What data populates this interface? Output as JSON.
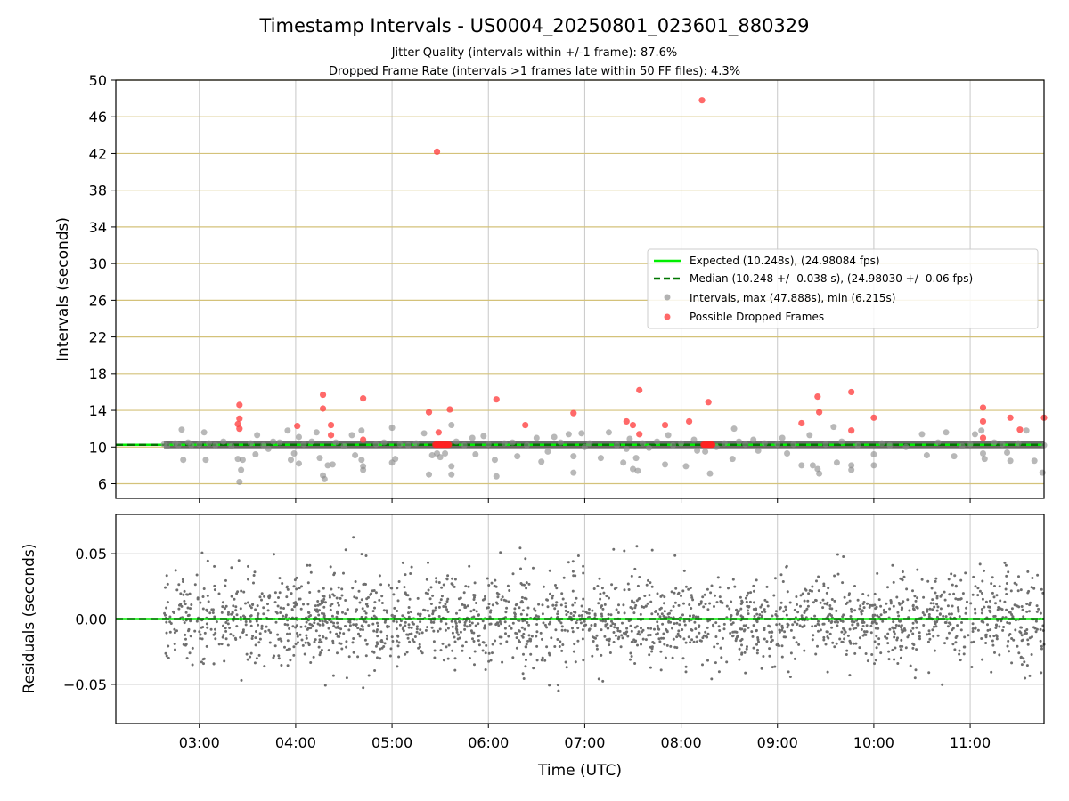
{
  "figure": {
    "title": "Timestamp Intervals - US0004_20250801_023601_880329",
    "subtitle_line1": "Jitter Quality (intervals within +/-1 frame): 87.6%",
    "subtitle_line2": "Dropped Frame Rate (intervals >1 frames late within 50 FF files): 4.3%"
  },
  "chart_data": [
    {
      "type": "scatter",
      "ylabel": "Intervals (seconds)",
      "xlim": [
        "02:08",
        "11:46"
      ],
      "ylim": [
        4.4,
        50
      ],
      "yticks": [
        6,
        10,
        14,
        18,
        22,
        26,
        30,
        34,
        38,
        42,
        46,
        50
      ],
      "ytick_labels": [
        "6",
        "10",
        "14",
        "18",
        "22",
        "26",
        "30",
        "34",
        "38",
        "42",
        "46",
        "50"
      ],
      "grid": "on",
      "grid_color_horizontal": "#d4c27a",
      "grid_color_vertical": "#c8c8c8",
      "legend_position": "right",
      "legend": [
        {
          "label": "Expected (10.248s), (24.98084 fps)",
          "kind": "line",
          "color": "#00ee00"
        },
        {
          "label": "Median (10.248 +/- 0.038 s), (24.98030 +/- 0.06 fps)",
          "kind": "dashed",
          "color": "#007700"
        },
        {
          "label": "Intervals, max (47.888s), min (6.215s)",
          "kind": "marker",
          "color": "#888888"
        },
        {
          "label": "Possible Dropped Frames",
          "kind": "marker",
          "color": "#ff4444"
        }
      ],
      "reference_lines": {
        "expected": 10.248,
        "median": 10.248
      },
      "series": [
        {
          "name": "Possible Dropped Frames",
          "color": "#ff4444",
          "points": [
            [
              "03:25",
              14.6
            ],
            [
              "03:25",
              13.1
            ],
            [
              "03:24",
              12.5
            ],
            [
              "03:25",
              12.0
            ],
            [
              "04:01",
              12.3
            ],
            [
              "04:17",
              15.7
            ],
            [
              "04:17",
              14.2
            ],
            [
              "04:22",
              12.4
            ],
            [
              "04:22",
              11.3
            ],
            [
              "04:42",
              15.3
            ],
            [
              "04:42",
              10.8
            ],
            [
              "05:23",
              13.8
            ],
            [
              "05:28",
              42.2
            ],
            [
              "05:29",
              11.6
            ],
            [
              "05:36",
              14.1
            ],
            [
              "06:05",
              15.2
            ],
            [
              "06:23",
              12.4
            ],
            [
              "06:53",
              13.7
            ],
            [
              "07:26",
              12.8
            ],
            [
              "07:30",
              12.4
            ],
            [
              "07:34",
              16.2
            ],
            [
              "07:34",
              11.4
            ],
            [
              "07:50",
              12.4
            ],
            [
              "08:05",
              12.8
            ],
            [
              "08:13",
              47.8
            ],
            [
              "08:17",
              14.9
            ],
            [
              "09:15",
              12.6
            ],
            [
              "09:25",
              15.5
            ],
            [
              "09:26",
              13.8
            ],
            [
              "09:46",
              16.0
            ],
            [
              "09:46",
              11.8
            ],
            [
              "10:00",
              13.2
            ],
            [
              "11:08",
              14.3
            ],
            [
              "11:08",
              12.8
            ],
            [
              "11:08",
              11.0
            ],
            [
              "11:25",
              13.2
            ],
            [
              "11:31",
              11.9
            ],
            [
              "11:46",
              13.2
            ]
          ]
        },
        {
          "name": "Intervals",
          "color": "#888888",
          "points": [
            [
              "02:38",
              10.3
            ],
            [
              "02:40",
              10.1
            ],
            [
              "02:45",
              10.4
            ],
            [
              "02:47",
              10.2
            ],
            [
              "02:49",
              11.9
            ],
            [
              "02:50",
              8.6
            ],
            [
              "02:53",
              10.5
            ],
            [
              "02:55",
              10.2
            ],
            [
              "03:00",
              10.3
            ],
            [
              "03:03",
              11.6
            ],
            [
              "03:04",
              8.6
            ],
            [
              "03:06",
              10.4
            ],
            [
              "03:10",
              10.2
            ],
            [
              "03:15",
              10.6
            ],
            [
              "03:20",
              10.1
            ],
            [
              "03:24",
              8.7
            ],
            [
              "03:25",
              6.2
            ],
            [
              "03:26",
              7.5
            ],
            [
              "03:27",
              8.6
            ],
            [
              "03:32",
              10.4
            ],
            [
              "03:35",
              9.2
            ],
            [
              "03:36",
              11.3
            ],
            [
              "03:40",
              10.2
            ],
            [
              "03:43",
              9.8
            ],
            [
              "03:46",
              10.6
            ],
            [
              "03:50",
              10.5
            ],
            [
              "03:55",
              11.8
            ],
            [
              "03:57",
              8.6
            ],
            [
              "03:59",
              9.3
            ],
            [
              "04:02",
              11.1
            ],
            [
              "04:02",
              8.2
            ],
            [
              "04:05",
              10.3
            ],
            [
              "04:10",
              10.6
            ],
            [
              "04:13",
              11.6
            ],
            [
              "04:15",
              8.8
            ],
            [
              "04:17",
              6.9
            ],
            [
              "04:18",
              6.5
            ],
            [
              "04:20",
              8.0
            ],
            [
              "04:23",
              8.1
            ],
            [
              "04:25",
              10.5
            ],
            [
              "04:30",
              10.1
            ],
            [
              "04:35",
              11.3
            ],
            [
              "04:37",
              9.1
            ],
            [
              "04:41",
              11.8
            ],
            [
              "04:41",
              8.6
            ],
            [
              "04:42",
              7.9
            ],
            [
              "04:42",
              7.5
            ],
            [
              "04:50",
              10.3
            ],
            [
              "04:55",
              10.5
            ],
            [
              "05:00",
              12.1
            ],
            [
              "05:00",
              8.3
            ],
            [
              "05:02",
              8.7
            ],
            [
              "05:05",
              10.3
            ],
            [
              "05:10",
              10.2
            ],
            [
              "05:15",
              10.4
            ],
            [
              "05:20",
              11.5
            ],
            [
              "05:23",
              7.0
            ],
            [
              "05:25",
              9.1
            ],
            [
              "05:28",
              9.3
            ],
            [
              "05:30",
              8.9
            ],
            [
              "05:33",
              9.3
            ],
            [
              "05:37",
              12.4
            ],
            [
              "05:37",
              7.9
            ],
            [
              "05:37",
              7.0
            ],
            [
              "05:40",
              10.6
            ],
            [
              "05:45",
              10.2
            ],
            [
              "05:50",
              11.0
            ],
            [
              "05:52",
              9.2
            ],
            [
              "05:57",
              11.2
            ],
            [
              "06:00",
              10.3
            ],
            [
              "06:04",
              8.6
            ],
            [
              "06:05",
              6.8
            ],
            [
              "06:10",
              10.4
            ],
            [
              "06:15",
              10.5
            ],
            [
              "06:18",
              9.0
            ],
            [
              "06:24",
              10.2
            ],
            [
              "06:30",
              11.0
            ],
            [
              "06:33",
              8.4
            ],
            [
              "06:37",
              9.5
            ],
            [
              "06:41",
              11.1
            ],
            [
              "06:45",
              10.5
            ],
            [
              "06:50",
              11.4
            ],
            [
              "06:53",
              9.0
            ],
            [
              "06:53",
              7.2
            ],
            [
              "06:58",
              11.5
            ],
            [
              "07:00",
              10.0
            ],
            [
              "07:03",
              10.4
            ],
            [
              "07:10",
              8.8
            ],
            [
              "07:15",
              11.6
            ],
            [
              "07:20",
              10.2
            ],
            [
              "07:24",
              8.3
            ],
            [
              "07:26",
              9.8
            ],
            [
              "07:28",
              10.9
            ],
            [
              "07:30",
              7.6
            ],
            [
              "07:32",
              8.8
            ],
            [
              "07:33",
              7.4
            ],
            [
              "07:36",
              10.4
            ],
            [
              "07:40",
              9.9
            ],
            [
              "07:45",
              10.6
            ],
            [
              "07:50",
              8.1
            ],
            [
              "07:52",
              11.3
            ],
            [
              "07:55",
              10.2
            ],
            [
              "08:00",
              10.4
            ],
            [
              "08:03",
              7.9
            ],
            [
              "08:08",
              10.8
            ],
            [
              "08:10",
              9.6
            ],
            [
              "08:15",
              9.5
            ],
            [
              "08:18",
              7.1
            ],
            [
              "08:22",
              10.0
            ],
            [
              "08:27",
              10.4
            ],
            [
              "08:32",
              8.7
            ],
            [
              "08:33",
              12.0
            ],
            [
              "08:36",
              10.6
            ],
            [
              "08:40",
              10.3
            ],
            [
              "08:45",
              10.8
            ],
            [
              "08:48",
              9.6
            ],
            [
              "08:52",
              10.4
            ],
            [
              "09:00",
              10.3
            ],
            [
              "09:03",
              11.0
            ],
            [
              "09:06",
              9.3
            ],
            [
              "09:10",
              10.3
            ],
            [
              "09:15",
              8.0
            ],
            [
              "09:20",
              11.3
            ],
            [
              "09:22",
              8.0
            ],
            [
              "09:25",
              7.6
            ],
            [
              "09:26",
              7.1
            ],
            [
              "09:30",
              10.3
            ],
            [
              "09:35",
              12.2
            ],
            [
              "09:37",
              8.3
            ],
            [
              "09:40",
              10.6
            ],
            [
              "09:46",
              8.0
            ],
            [
              "09:46",
              7.5
            ],
            [
              "09:50",
              10.2
            ],
            [
              "10:00",
              9.2
            ],
            [
              "10:00",
              8.0
            ],
            [
              "10:05",
              10.4
            ],
            [
              "10:10",
              10.2
            ],
            [
              "10:20",
              10.0
            ],
            [
              "10:30",
              11.4
            ],
            [
              "10:33",
              9.1
            ],
            [
              "10:40",
              10.5
            ],
            [
              "10:45",
              11.6
            ],
            [
              "10:50",
              9.0
            ],
            [
              "10:55",
              10.1
            ],
            [
              "11:00",
              10.3
            ],
            [
              "11:03",
              11.4
            ],
            [
              "11:07",
              11.8
            ],
            [
              "11:08",
              9.3
            ],
            [
              "11:09",
              8.7
            ],
            [
              "11:15",
              10.5
            ],
            [
              "11:20",
              10.3
            ],
            [
              "11:23",
              9.4
            ],
            [
              "11:25",
              8.5
            ],
            [
              "11:30",
              10.4
            ],
            [
              "11:35",
              11.8
            ],
            [
              "11:40",
              8.5
            ],
            [
              "11:45",
              7.2
            ],
            [
              "11:46",
              10.2
            ]
          ]
        }
      ],
      "dropped_frame_clusters": [
        {
          "x_start": "05:27",
          "x_end": "05:36",
          "y": 10.25
        },
        {
          "x_start": "08:14",
          "x_end": "08:20",
          "y": 10.25
        }
      ]
    },
    {
      "type": "scatter",
      "xlabel": "Time (UTC)",
      "ylabel": "Residuals (seconds)",
      "xlim": [
        "02:08",
        "11:46"
      ],
      "ylim": [
        -0.08,
        0.08
      ],
      "xticks": [
        "03:00",
        "04:00",
        "05:00",
        "06:00",
        "07:00",
        "08:00",
        "09:00",
        "10:00",
        "11:00"
      ],
      "yticks": [
        -0.05,
        0,
        0.05
      ],
      "ytick_labels": [
        "−0.05",
        "0.00",
        "0.05"
      ],
      "grid": "on",
      "reference_lines": {
        "expected": 0,
        "median": 0
      },
      "series": [
        {
          "name": "Residuals",
          "color": "#6e6e6e",
          "x_range": [
            "02:38",
            "11:46"
          ],
          "point_count": 2200,
          "std": 0.018,
          "max_abs": 0.08
        }
      ]
    }
  ]
}
